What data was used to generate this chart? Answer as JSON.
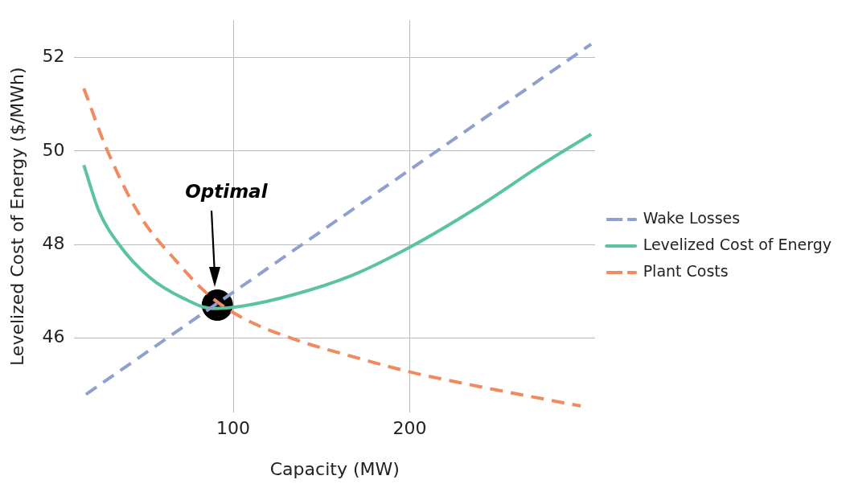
{
  "chart_data": {
    "type": "line",
    "xlabel": "Capacity (MW)",
    "ylabel": "Levelized Cost of Energy ($/MWh)",
    "xlim": [
      10,
      305
    ],
    "ylim": [
      44.4,
      52.8
    ],
    "xticks": [
      100,
      200
    ],
    "yticks": [
      46,
      48,
      50,
      52
    ],
    "grid": true,
    "legend": "right",
    "marker": "none",
    "series": [
      {
        "name": "Wake Losses",
        "color": "#8f9fcf",
        "line_style": "dashed",
        "x": [
          16.6,
          302.7
        ],
        "values": [
          44.79,
          52.29
        ]
      },
      {
        "name": "Levelized Cost of Energy",
        "color": "#5cc49c",
        "line_style": "solid",
        "x": [
          15.4,
          23.8,
          35.7,
          52.5,
          71.6,
          88.5,
          105.2,
          133.8,
          167.5,
          200,
          239,
          275.2,
          302.7
        ],
        "values": [
          49.7,
          48.73,
          47.98,
          47.3,
          46.85,
          46.63,
          46.68,
          46.92,
          47.34,
          47.94,
          48.81,
          49.72,
          50.36
        ]
      },
      {
        "name": "Plant Costs",
        "color": "#f28a60",
        "line_style": "dashed",
        "x": [
          15.4,
          28.6,
          47.8,
          66.9,
          86,
          105.2,
          133.8,
          167.5,
          200,
          239,
          296.8
        ],
        "values": [
          51.34,
          50.02,
          48.58,
          47.68,
          46.92,
          46.43,
          45.98,
          45.6,
          45.27,
          44.96,
          44.54
        ]
      },
      {
        "type": "scatter",
        "color": "#000000",
        "marker": "circle",
        "x": [
          91
        ],
        "values": [
          46.7
        ]
      }
    ],
    "annotations": [
      "Optimal"
    ]
  }
}
